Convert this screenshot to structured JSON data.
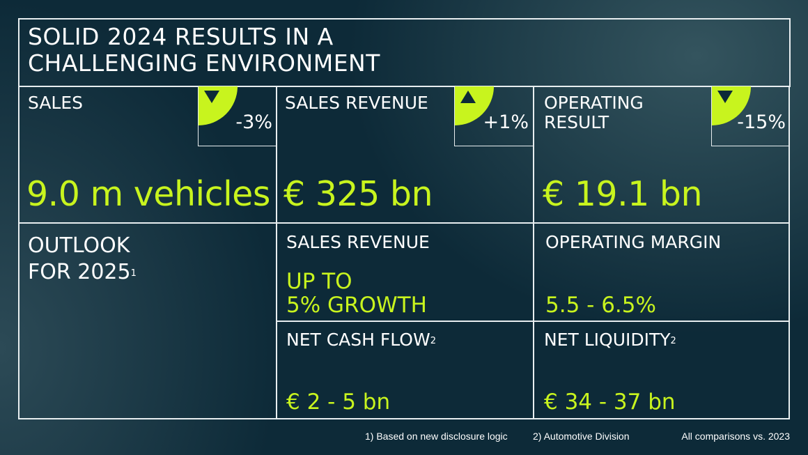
{
  "title_line1": "SOLID 2024 RESULTS IN A",
  "title_line2": "CHALLENGING ENVIRONMENT",
  "kpis": [
    {
      "label": "SALES",
      "label2": "",
      "change": "-3%",
      "direction": "down",
      "value": "9.0 m vehicles"
    },
    {
      "label": "SALES REVENUE",
      "label2": "",
      "change": "+1%",
      "direction": "up",
      "value": "€ 325 bn"
    },
    {
      "label": "OPERATING",
      "label2": "RESULT",
      "change": "-15%",
      "direction": "down",
      "value": "€ 19.1 bn"
    }
  ],
  "outlook": {
    "line1": "OUTLOOK",
    "line2": "FOR 2025",
    "sup": "1"
  },
  "forecast": [
    {
      "label": "SALES REVENUE",
      "sup": "",
      "value1": "UP TO",
      "value2": "5% GROWTH"
    },
    {
      "label": "OPERATING MARGIN",
      "sup": "",
      "value1": "5.5 - 6.5%"
    },
    {
      "label": "NET CASH FLOW",
      "sup": "2",
      "value1": "€ 2 - 5 bn"
    },
    {
      "label": "NET LIQUIDITY",
      "sup": "2",
      "value1": "€ 34 - 37 bn"
    }
  ],
  "footnotes": {
    "f1": "1)  Based on new disclosure logic",
    "f2": "2) Automotive Division",
    "compare": "All comparisons vs. 2023"
  },
  "colors": {
    "accent": "#c8f41e",
    "background": "#0d2a38"
  }
}
